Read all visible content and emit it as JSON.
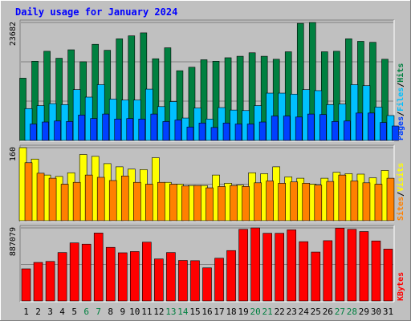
{
  "title": "Daily usage for January 2024",
  "colors": {
    "hits": "#008040",
    "files": "#00c0ff",
    "pages": "#0040ff",
    "visits": "#ffff00",
    "sites": "#ff8000",
    "kbytes": "#ff0000",
    "weekend_label": "#008040",
    "title": "#0000ff",
    "frame_bg": "#c0c0c0"
  },
  "chart_data": [
    {
      "type": "bar",
      "title": "Daily usage for January 2024",
      "categories": [
        "1",
        "2",
        "3",
        "4",
        "5",
        "6",
        "7",
        "8",
        "9",
        "10",
        "11",
        "12",
        "13",
        "14",
        "15",
        "16",
        "17",
        "18",
        "19",
        "20",
        "21",
        "22",
        "23",
        "24",
        "25",
        "26",
        "27",
        "28",
        "29",
        "30",
        "31"
      ],
      "weekend_days": [
        "6",
        "7",
        "13",
        "14",
        "20",
        "21",
        "27",
        "28"
      ],
      "y_tick_label": "23682",
      "ylim": [
        0,
        23682
      ],
      "axis_label_parts": [
        {
          "text": "Pages",
          "color": "#0040ff"
        },
        {
          "text": "/",
          "color": "#000000"
        },
        {
          "text": "Files",
          "color": "#00c0ff"
        },
        {
          "text": "/",
          "color": "#000000"
        },
        {
          "text": "Hits",
          "color": "#008040"
        }
      ],
      "series": [
        {
          "name": "Hits",
          "color": "#008040",
          "values": [
            12500,
            15900,
            17900,
            16500,
            18200,
            15800,
            19300,
            18100,
            20400,
            21000,
            21600,
            16400,
            18600,
            14000,
            14700,
            16200,
            15900,
            16600,
            16900,
            17600,
            16900,
            16300,
            17800,
            23500,
            23682,
            17800,
            17900,
            20400,
            19900,
            19700,
            16300
          ]
        },
        {
          "name": "Files",
          "color": "#00c0ff",
          "values": [
            6400,
            7000,
            7400,
            7200,
            10200,
            8700,
            11200,
            8300,
            8100,
            8100,
            10300,
            6800,
            7800,
            4500,
            6500,
            4300,
            6600,
            6100,
            6000,
            7000,
            9500,
            9500,
            9300,
            10200,
            10000,
            7200,
            7300,
            11200,
            11000,
            6700,
            5000
          ]
        },
        {
          "name": "Pages",
          "color": "#0040ff",
          "values": [
            3300,
            3700,
            3900,
            3800,
            5100,
            4400,
            5300,
            4300,
            4400,
            4300,
            5300,
            3800,
            4100,
            2700,
            3500,
            2600,
            3500,
            3300,
            3300,
            3700,
            4900,
            4900,
            4700,
            5300,
            5200,
            3800,
            3900,
            5500,
            5500,
            3600,
            2900
          ]
        }
      ]
    },
    {
      "type": "bar",
      "categories": [
        "1",
        "2",
        "3",
        "4",
        "5",
        "6",
        "7",
        "8",
        "9",
        "10",
        "11",
        "12",
        "13",
        "14",
        "15",
        "16",
        "17",
        "18",
        "19",
        "20",
        "21",
        "22",
        "23",
        "24",
        "25",
        "26",
        "27",
        "28",
        "29",
        "30",
        "31"
      ],
      "y_tick_label": "160",
      "ylim": [
        0,
        160
      ],
      "axis_label_parts": [
        {
          "text": "Sites",
          "color": "#ff8000"
        },
        {
          "text": "/",
          "color": "#000000"
        },
        {
          "text": "Visits",
          "color": "#ffff00"
        }
      ],
      "series": [
        {
          "name": "Visits",
          "color": "#ffff00",
          "values": [
            160,
            135,
            100,
            97,
            105,
            145,
            141,
            125,
            118,
            113,
            112,
            138,
            84,
            80,
            77,
            77,
            100,
            82,
            78,
            105,
            103,
            118,
            96,
            93,
            80,
            93,
            106,
            103,
            102,
            94,
            110
          ]
        },
        {
          "name": "Sites",
          "color": "#ff8000",
          "values": [
            127,
            104,
            93,
            80,
            84,
            100,
            95,
            88,
            98,
            84,
            80,
            84,
            80,
            76,
            77,
            72,
            75,
            77,
            75,
            83,
            87,
            82,
            85,
            82,
            78,
            86,
            100,
            87,
            83,
            80,
            93
          ]
        }
      ]
    },
    {
      "type": "bar",
      "categories": [
        "1",
        "2",
        "3",
        "4",
        "5",
        "6",
        "7",
        "8",
        "9",
        "10",
        "11",
        "12",
        "13",
        "14",
        "15",
        "16",
        "17",
        "18",
        "19",
        "20",
        "21",
        "22",
        "23",
        "24",
        "25",
        "26",
        "27",
        "28",
        "29",
        "30",
        "31"
      ],
      "y_tick_label": "887079",
      "ylim": [
        0,
        887079
      ],
      "axis_label_parts": [
        {
          "text": "KBytes",
          "color": "#ff0000"
        }
      ],
      "series": [
        {
          "name": "KBytes",
          "color": "#ff0000",
          "values": [
            390000,
            468000,
            480000,
            588000,
            705000,
            690000,
            825000,
            651000,
            585000,
            600000,
            714000,
            510000,
            588000,
            492000,
            489000,
            402000,
            519000,
            612000,
            870000,
            887079,
            822000,
            822000,
            864000,
            720000,
            594000,
            732000,
            885000,
            870000,
            843000,
            729000,
            630000
          ]
        }
      ]
    }
  ]
}
